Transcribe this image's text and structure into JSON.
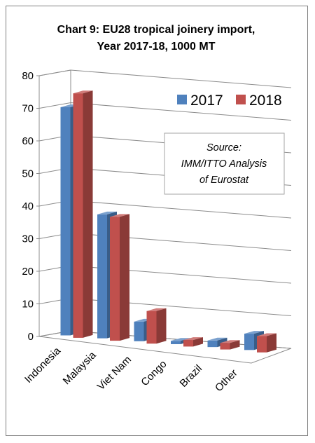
{
  "chart_data": {
    "type": "bar",
    "title_lines": [
      "Chart 9: EU28 tropical joinery import,",
      "Year 2017-18, 1000 MT"
    ],
    "categories": [
      "Indonesia",
      "Malaysia",
      "Viet Nam",
      "Congo",
      "Brazil",
      "Other"
    ],
    "series": [
      {
        "name": "2017",
        "color": "#4f81bd",
        "values": [
          70,
          38,
          6,
          1,
          2,
          5
        ]
      },
      {
        "name": "2018",
        "color": "#c0504d",
        "values": [
          75,
          38,
          10,
          2,
          2,
          5
        ]
      }
    ],
    "ylim": [
      0,
      80
    ],
    "yticks": [
      0,
      10,
      20,
      30,
      40,
      50,
      60,
      70,
      80
    ],
    "grid": true,
    "legend_position": "top-right",
    "annotation_lines": [
      "Source:",
      "IMM/ITTO Analysis",
      "of Eurostat"
    ]
  }
}
